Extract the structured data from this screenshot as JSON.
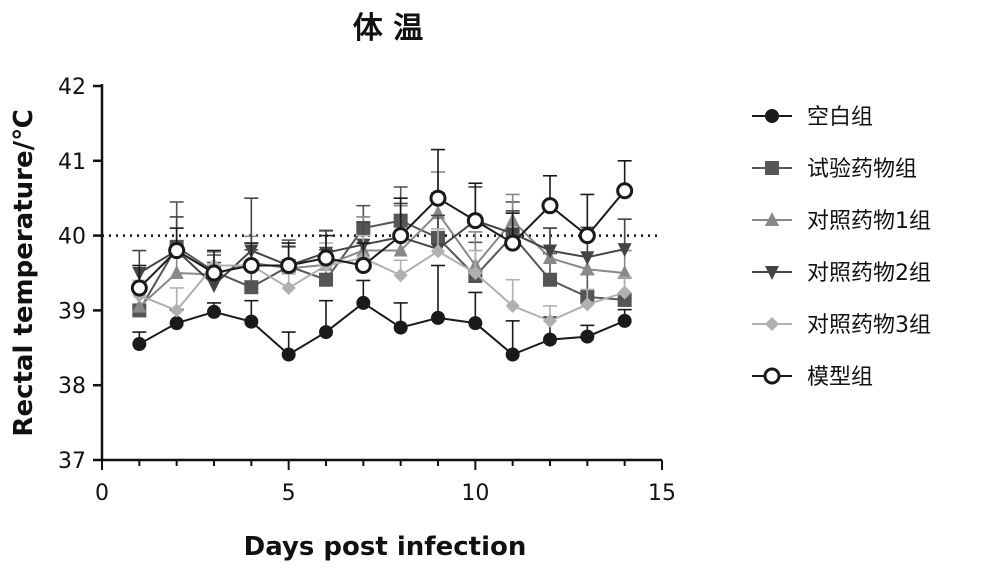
{
  "chart_data": {
    "type": "line",
    "title": "体 温",
    "xlabel": "Days post infection",
    "ylabel": "Rectal temperature/℃",
    "xlim": [
      0,
      15
    ],
    "ylim": [
      37,
      42
    ],
    "xticks": [
      0,
      5,
      10,
      15
    ],
    "yticks": [
      37,
      38,
      39,
      40,
      41,
      42
    ],
    "reference_line": {
      "y": 40,
      "style": "dotted"
    },
    "grid": false,
    "legend_position": "right",
    "x": [
      1,
      2,
      3,
      4,
      5,
      6,
      7,
      8,
      9,
      10,
      11,
      12,
      13,
      14
    ],
    "series": [
      {
        "name": "空白组",
        "marker": "circle",
        "color": "#1a1a1a",
        "values": [
          38.55,
          38.83,
          38.98,
          38.85,
          38.41,
          38.71,
          39.1,
          38.77,
          38.9,
          38.83,
          38.41,
          38.61,
          38.65,
          38.86
        ],
        "errors": [
          0.16,
          0.18,
          0.12,
          0.28,
          0.3,
          0.42,
          0.3,
          0.33,
          0.7,
          0.41,
          0.45,
          0.3,
          0.15,
          0.15
        ]
      },
      {
        "name": "试验药物组",
        "marker": "square",
        "color": "#555555",
        "values": [
          39.0,
          39.85,
          39.52,
          39.31,
          39.59,
          39.41,
          40.1,
          40.2,
          39.97,
          39.46,
          40.0,
          39.41,
          39.18,
          39.14
        ],
        "errors": [
          0.3,
          0.6,
          0.22,
          0.5,
          0.35,
          0.4,
          0.3,
          0.45,
          0.6,
          0.45,
          0.45,
          0.35,
          0.3,
          0.3
        ]
      },
      {
        "name": "对照药物1组",
        "marker": "triangle-up",
        "color": "#888888",
        "values": [
          39.05,
          39.5,
          39.48,
          39.64,
          39.56,
          39.61,
          39.8,
          39.8,
          40.3,
          39.6,
          40.2,
          39.7,
          39.55,
          39.5
        ],
        "errors": [
          0.3,
          0.35,
          0.3,
          0.35,
          0.3,
          0.45,
          0.45,
          0.6,
          0.55,
          0.45,
          0.35,
          0.4,
          0.4,
          0.3
        ]
      },
      {
        "name": "对照药物2组",
        "marker": "triangle-down",
        "color": "#444444",
        "values": [
          39.5,
          39.8,
          39.34,
          39.8,
          39.6,
          39.77,
          39.88,
          39.98,
          39.82,
          40.2,
          40.03,
          39.8,
          39.71,
          39.82
        ],
        "errors": [
          0.3,
          0.45,
          0.3,
          0.7,
          0.25,
          0.3,
          0.3,
          0.45,
          0.45,
          0.45,
          0.3,
          0.3,
          0.4,
          0.4
        ]
      },
      {
        "name": "对照药物3组",
        "marker": "diamond",
        "color": "#b0b0b0",
        "values": [
          39.2,
          39.0,
          39.6,
          39.6,
          39.3,
          39.6,
          39.7,
          39.47,
          39.79,
          39.5,
          39.06,
          38.86,
          39.08,
          39.24
        ],
        "errors": [
          0.2,
          0.3,
          0.2,
          0.3,
          0.2,
          0.3,
          0.3,
          0.2,
          0.3,
          0.3,
          0.35,
          0.2,
          0.2,
          0.2
        ]
      },
      {
        "name": "模型组",
        "marker": "circle-open",
        "color": "#1a1a1a",
        "values": [
          39.3,
          39.8,
          39.5,
          39.6,
          39.6,
          39.7,
          39.6,
          40.0,
          40.5,
          40.2,
          39.9,
          40.4,
          40.0,
          40.6
        ],
        "errors": [
          0.3,
          0.3,
          0.3,
          0.3,
          0.3,
          0.3,
          0.3,
          0.5,
          0.65,
          0.5,
          0.4,
          0.4,
          0.55,
          0.4
        ]
      }
    ]
  }
}
